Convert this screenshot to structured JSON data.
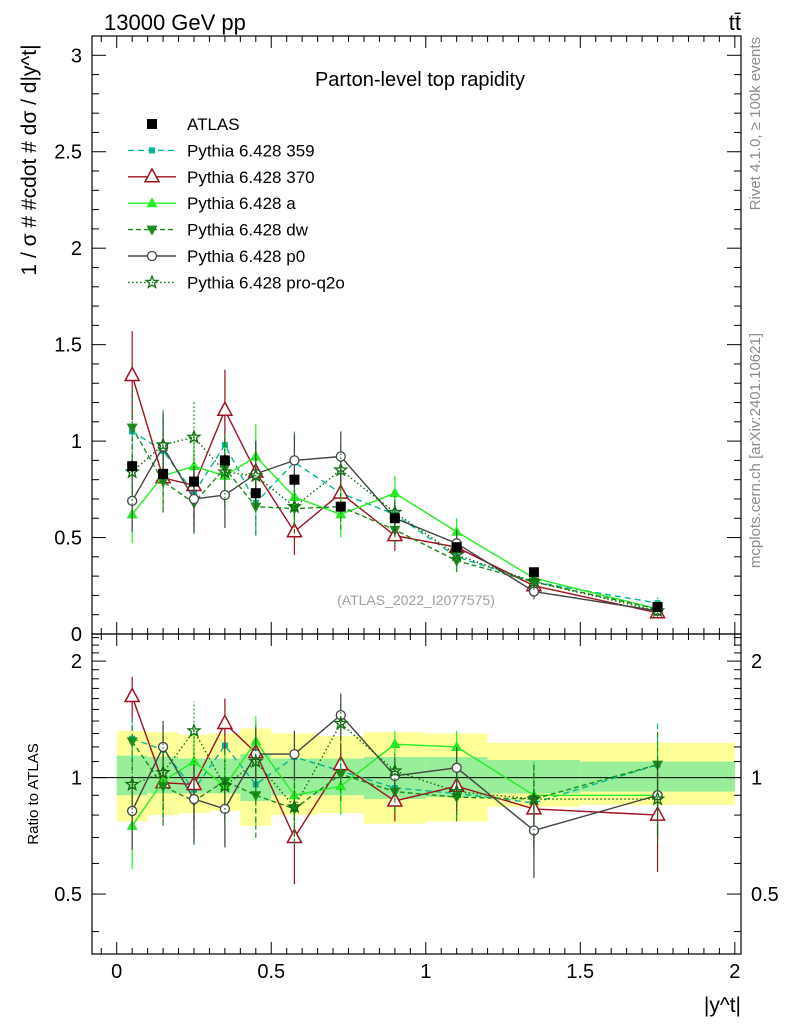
{
  "header": {
    "energy_label": "13000 GeV pp",
    "process_label": "tt̄"
  },
  "side_labels": {
    "rivet": "Rivet 4.1.0, ≥ 100k events",
    "source": "mcplots.cern.ch [arXiv:2401.10621]"
  },
  "chart_data": [
    {
      "type": "line",
      "title": "Parton-level top rapidity",
      "watermark": "(ATLAS_2022_I2077575)",
      "ylabel": "1 / σ # #cdot # dσ / d|y^t|",
      "xlabel": "|y^t|",
      "xlim": [
        -0.08,
        2.02
      ],
      "ylim": [
        0,
        3.1
      ],
      "yticks": [
        {
          "v": 0,
          "label": "0"
        },
        {
          "v": 0.5,
          "label": "0.5"
        },
        {
          "v": 1,
          "label": "1"
        },
        {
          "v": 1.5,
          "label": "1.5"
        },
        {
          "v": 2,
          "label": "2"
        },
        {
          "v": 2.5,
          "label": "2.5"
        },
        {
          "v": 3,
          "label": "3"
        }
      ],
      "x": [
        0.05,
        0.15,
        0.25,
        0.35,
        0.45,
        0.575,
        0.725,
        0.9,
        1.1,
        1.35,
        1.75
      ],
      "data": {
        "name": "ATLAS",
        "values": [
          0.87,
          0.83,
          0.79,
          0.9,
          0.73,
          0.8,
          0.66,
          0.6,
          0.45,
          0.32,
          0.14
        ],
        "errors": [
          0.03,
          0.03,
          0.03,
          0.03,
          0.03,
          0.03,
          0.02,
          0.02,
          0.02,
          0.01,
          0.01
        ]
      },
      "series": [
        {
          "name": "Pythia 6.428 359",
          "color": "#00b894",
          "dash": "6,4",
          "marker": "square-small",
          "values": [
            1.05,
            0.95,
            0.73,
            0.98,
            0.68,
            0.89,
            0.73,
            0.62,
            0.4,
            0.27,
            0.16
          ],
          "errors": [
            0.2,
            0.18,
            0.18,
            0.2,
            0.16,
            0.16,
            0.12,
            0.08,
            0.06,
            0.04,
            0.03
          ]
        },
        {
          "name": "Pythia 6.428 370",
          "color": "#a01020",
          "dash": "",
          "marker": "triangle-open",
          "values": [
            1.34,
            0.81,
            0.77,
            1.16,
            0.84,
            0.53,
            0.73,
            0.51,
            0.45,
            0.25,
            0.11
          ],
          "errors": [
            0.23,
            0.18,
            0.18,
            0.21,
            0.17,
            0.12,
            0.12,
            0.08,
            0.06,
            0.04,
            0.03
          ]
        },
        {
          "name": "Pythia 6.428 a",
          "color": "#22ee22",
          "dash": "",
          "marker": "triangle-filled",
          "values": [
            0.62,
            0.82,
            0.87,
            0.82,
            0.92,
            0.71,
            0.62,
            0.73,
            0.53,
            0.29,
            0.13
          ],
          "errors": [
            0.15,
            0.16,
            0.17,
            0.17,
            0.17,
            0.14,
            0.12,
            0.09,
            0.07,
            0.04,
            0.03
          ]
        },
        {
          "name": "Pythia 6.428 dw",
          "color": "#1a8c1a",
          "dash": "5,3",
          "marker": "triangle-down",
          "values": [
            1.07,
            0.79,
            0.68,
            0.86,
            0.66,
            0.65,
            0.66,
            0.54,
            0.38,
            0.27,
            0.13
          ],
          "errors": [
            0.2,
            0.16,
            0.16,
            0.18,
            0.15,
            0.13,
            0.12,
            0.08,
            0.06,
            0.04,
            0.03
          ]
        },
        {
          "name": "Pythia 6.428 p0",
          "color": "#444444",
          "dash": "",
          "marker": "circle-open",
          "values": [
            0.69,
            0.97,
            0.7,
            0.72,
            0.83,
            0.9,
            0.92,
            0.6,
            0.47,
            0.22,
            0.12
          ],
          "errors": [
            0.16,
            0.18,
            0.17,
            0.17,
            0.17,
            0.14,
            0.13,
            0.09,
            0.07,
            0.04,
            0.03
          ]
        },
        {
          "name": "Pythia 6.428 pro-q2o",
          "color": "#0a6e0a",
          "dash": "1.5,2.5",
          "marker": "star",
          "values": [
            0.84,
            0.98,
            1.02,
            0.84,
            0.82,
            0.66,
            0.85,
            0.63,
            0.41,
            0.27,
            0.12
          ],
          "errors": [
            0.17,
            0.18,
            0.18,
            0.18,
            0.17,
            0.13,
            0.13,
            0.09,
            0.06,
            0.04,
            0.03
          ]
        }
      ]
    },
    {
      "type": "line",
      "ylabel": "Ratio to ATLAS",
      "xlabel": "|y^t|",
      "xlim": [
        -0.08,
        2.02
      ],
      "ylim": [
        0.35,
        2.35
      ],
      "scale": "log",
      "yticks": [
        {
          "v": 0.5,
          "label": "0.5"
        },
        {
          "v": 1,
          "label": "1"
        },
        {
          "v": 2,
          "label": "2"
        }
      ],
      "xticks": [
        {
          "v": 0,
          "label": "0"
        },
        {
          "v": 0.5,
          "label": "0.5"
        },
        {
          "v": 1,
          "label": "1"
        },
        {
          "v": 1.5,
          "label": "1.5"
        },
        {
          "v": 2,
          "label": "2"
        }
      ],
      "bin_edges": [
        0,
        0.1,
        0.2,
        0.3,
        0.4,
        0.5,
        0.65,
        0.8,
        1.0,
        1.2,
        1.5,
        2.0
      ],
      "band_inner": [
        [
          0.9,
          1.14
        ],
        [
          0.91,
          1.13
        ],
        [
          0.91,
          1.12
        ],
        [
          0.91,
          1.12
        ],
        [
          0.87,
          1.15
        ],
        [
          0.9,
          1.12
        ],
        [
          0.9,
          1.12
        ],
        [
          0.88,
          1.13
        ],
        [
          0.89,
          1.13
        ],
        [
          0.91,
          1.11
        ],
        [
          0.92,
          1.1
        ]
      ],
      "band_outer": [
        [
          0.77,
          1.32
        ],
        [
          0.8,
          1.31
        ],
        [
          0.81,
          1.29
        ],
        [
          0.82,
          1.3
        ],
        [
          0.75,
          1.34
        ],
        [
          0.8,
          1.3
        ],
        [
          0.81,
          1.28
        ],
        [
          0.76,
          1.31
        ],
        [
          0.77,
          1.3
        ],
        [
          0.84,
          1.23
        ],
        [
          0.85,
          1.23
        ]
      ],
      "series_ratios": [
        {
          "name": "Pythia 6.428 359",
          "values": [
            1.26,
            1.18,
            0.93,
            1.21,
            0.96,
            1.13,
            1.04,
            0.94,
            0.91,
            0.86,
            1.08
          ],
          "errors": [
            0.15,
            0.2,
            0.2,
            0.2,
            0.2,
            0.2,
            0.15,
            0.1,
            0.12,
            0.2,
            0.3
          ]
        },
        {
          "name": "Pythia 6.428 370",
          "values": [
            1.62,
            0.97,
            0.96,
            1.38,
            1.16,
            0.7,
            1.08,
            0.87,
            0.95,
            0.83,
            0.8
          ],
          "errors": [
            0.2,
            0.2,
            0.2,
            0.22,
            0.22,
            0.17,
            0.15,
            0.1,
            0.12,
            0.2,
            0.23
          ]
        },
        {
          "name": "Pythia 6.428 a",
          "values": [
            0.75,
            0.98,
            1.1,
            0.95,
            1.24,
            0.9,
            0.95,
            1.22,
            1.2,
            0.9,
            0.9
          ],
          "errors": [
            0.17,
            0.2,
            0.2,
            0.2,
            0.2,
            0.16,
            0.15,
            0.1,
            0.12,
            0.2,
            0.2
          ]
        },
        {
          "name": "Pythia 6.428 dw",
          "values": [
            1.24,
            0.95,
            0.87,
            0.98,
            0.9,
            0.83,
            1.02,
            0.92,
            0.89,
            0.88,
            1.08
          ],
          "errors": [
            0.2,
            0.2,
            0.2,
            0.2,
            0.2,
            0.16,
            0.15,
            0.1,
            0.12,
            0.2,
            0.25
          ]
        },
        {
          "name": "Pythia 6.428 p0",
          "values": [
            0.82,
            1.2,
            0.88,
            0.83,
            1.15,
            1.15,
            1.45,
            1.01,
            1.06,
            0.73,
            0.9
          ],
          "errors": [
            0.17,
            0.2,
            0.2,
            0.17,
            0.2,
            0.17,
            0.2,
            0.12,
            0.14,
            0.18,
            0.2
          ]
        },
        {
          "name": "Pythia 6.428 pro-q2o",
          "values": [
            0.96,
            1.03,
            1.32,
            0.95,
            1.1,
            0.84,
            1.38,
            1.04,
            0.92,
            0.88,
            0.88
          ],
          "errors": [
            0.17,
            0.2,
            0.25,
            0.18,
            0.2,
            0.15,
            0.2,
            0.12,
            0.12,
            0.2,
            0.2
          ]
        }
      ]
    }
  ]
}
